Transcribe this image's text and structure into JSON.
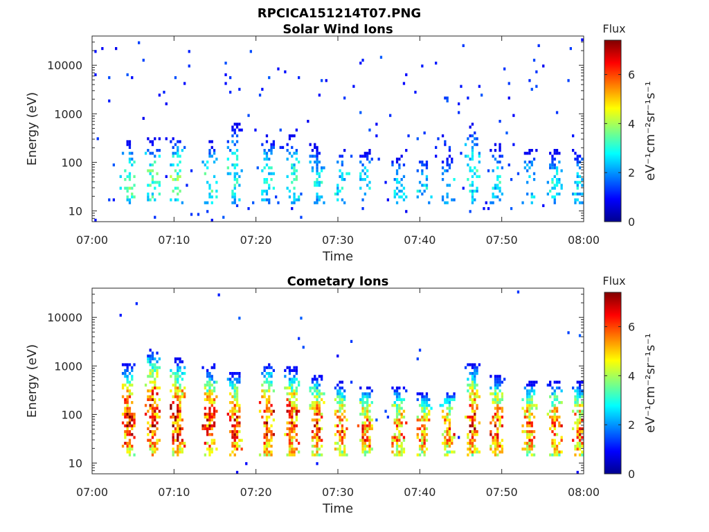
{
  "figure": {
    "filename_title": "RPCICA151214T07.PNG"
  },
  "chart_data": [
    {
      "type": "heatmap",
      "title": "Solar Wind Ions",
      "xlabel": "Time",
      "ylabel": "Energy (eV)",
      "x_range": [
        "07:00",
        "08:00"
      ],
      "x_ticks": [
        "07:00",
        "07:10",
        "07:20",
        "07:30",
        "07:40",
        "07:50",
        "08:00"
      ],
      "y_scale": "log",
      "y_range": [
        6,
        40000
      ],
      "y_ticks": [
        "10",
        "100",
        "1000",
        "10000"
      ],
      "colorbar": {
        "title": "Flux",
        "unit": "eV⁻¹cm⁻²sr⁻¹s⁻¹",
        "min": 0,
        "max": 7.4,
        "ticks": [
          "0",
          "2",
          "4",
          "6"
        ],
        "colormap": "jet"
      },
      "bursts": [
        {
          "t": "07:04",
          "e_low": 15,
          "e_high": 300,
          "peak": 3.5
        },
        {
          "t": "07:07",
          "e_low": 15,
          "e_high": 350,
          "peak": 3.5
        },
        {
          "t": "07:10",
          "e_low": 15,
          "e_high": 400,
          "peak": 3.5
        },
        {
          "t": "07:14",
          "e_low": 15,
          "e_high": 300,
          "peak": 3.2
        },
        {
          "t": "07:17",
          "e_low": 15,
          "e_high": 700,
          "peak": 3.0
        },
        {
          "t": "07:21",
          "e_low": 15,
          "e_high": 400,
          "peak": 3.0
        },
        {
          "t": "07:24",
          "e_low": 15,
          "e_high": 400,
          "peak": 3.0
        },
        {
          "t": "07:27",
          "e_low": 15,
          "e_high": 250,
          "peak": 2.8
        },
        {
          "t": "07:30",
          "e_low": 15,
          "e_high": 200,
          "peak": 2.8
        },
        {
          "t": "07:33",
          "e_low": 15,
          "e_high": 200,
          "peak": 2.8
        },
        {
          "t": "07:37",
          "e_low": 15,
          "e_high": 150,
          "peak": 2.6
        },
        {
          "t": "07:40",
          "e_low": 15,
          "e_high": 150,
          "peak": 2.6
        },
        {
          "t": "07:43",
          "e_low": 15,
          "e_high": 150,
          "peak": 2.6
        },
        {
          "t": "07:46",
          "e_low": 15,
          "e_high": 700,
          "peak": 3.0
        },
        {
          "t": "07:49",
          "e_low": 15,
          "e_high": 250,
          "peak": 2.8
        },
        {
          "t": "07:53",
          "e_low": 15,
          "e_high": 200,
          "peak": 2.8
        },
        {
          "t": "07:56",
          "e_low": 15,
          "e_high": 200,
          "peak": 2.8
        },
        {
          "t": "07:59",
          "e_low": 15,
          "e_high": 200,
          "peak": 2.8
        }
      ]
    },
    {
      "type": "heatmap",
      "title": "Cometary Ions",
      "xlabel": "Time",
      "ylabel": "Energy (eV)",
      "x_range": [
        "07:00",
        "08:00"
      ],
      "x_ticks": [
        "07:00",
        "07:10",
        "07:20",
        "07:30",
        "07:40",
        "07:50",
        "08:00"
      ],
      "y_scale": "log",
      "y_range": [
        6,
        40000
      ],
      "y_ticks": [
        "10",
        "100",
        "1000",
        "10000"
      ],
      "colorbar": {
        "title": "Flux",
        "unit": "eV⁻¹cm⁻²sr⁻¹s⁻¹",
        "min": 0,
        "max": 7.4,
        "ticks": [
          "0",
          "2",
          "4",
          "6"
        ],
        "colormap": "jet"
      },
      "bursts": [
        {
          "t": "07:04",
          "e_low": 15,
          "e_high": 1200,
          "peak": 6.5
        },
        {
          "t": "07:07",
          "e_low": 15,
          "e_high": 2500,
          "peak": 6.5
        },
        {
          "t": "07:10",
          "e_low": 15,
          "e_high": 1500,
          "peak": 6.5
        },
        {
          "t": "07:14",
          "e_low": 15,
          "e_high": 1000,
          "peak": 6.3
        },
        {
          "t": "07:17",
          "e_low": 15,
          "e_high": 800,
          "peak": 6.2
        },
        {
          "t": "07:21",
          "e_low": 15,
          "e_high": 1200,
          "peak": 6.3
        },
        {
          "t": "07:24",
          "e_low": 15,
          "e_high": 1000,
          "peak": 6.3
        },
        {
          "t": "07:27",
          "e_low": 15,
          "e_high": 700,
          "peak": 6.0
        },
        {
          "t": "07:30",
          "e_low": 15,
          "e_high": 500,
          "peak": 5.8
        },
        {
          "t": "07:33",
          "e_low": 15,
          "e_high": 400,
          "peak": 5.8
        },
        {
          "t": "07:37",
          "e_low": 15,
          "e_high": 400,
          "peak": 5.6
        },
        {
          "t": "07:40",
          "e_low": 15,
          "e_high": 300,
          "peak": 5.6
        },
        {
          "t": "07:43",
          "e_low": 15,
          "e_high": 350,
          "peak": 5.6
        },
        {
          "t": "07:46",
          "e_low": 15,
          "e_high": 1200,
          "peak": 6.2
        },
        {
          "t": "07:49",
          "e_low": 15,
          "e_high": 700,
          "peak": 6.0
        },
        {
          "t": "07:53",
          "e_low": 15,
          "e_high": 500,
          "peak": 5.8
        },
        {
          "t": "07:56",
          "e_low": 15,
          "e_high": 500,
          "peak": 5.8
        },
        {
          "t": "07:59",
          "e_low": 15,
          "e_high": 500,
          "peak": 5.8
        }
      ]
    }
  ]
}
